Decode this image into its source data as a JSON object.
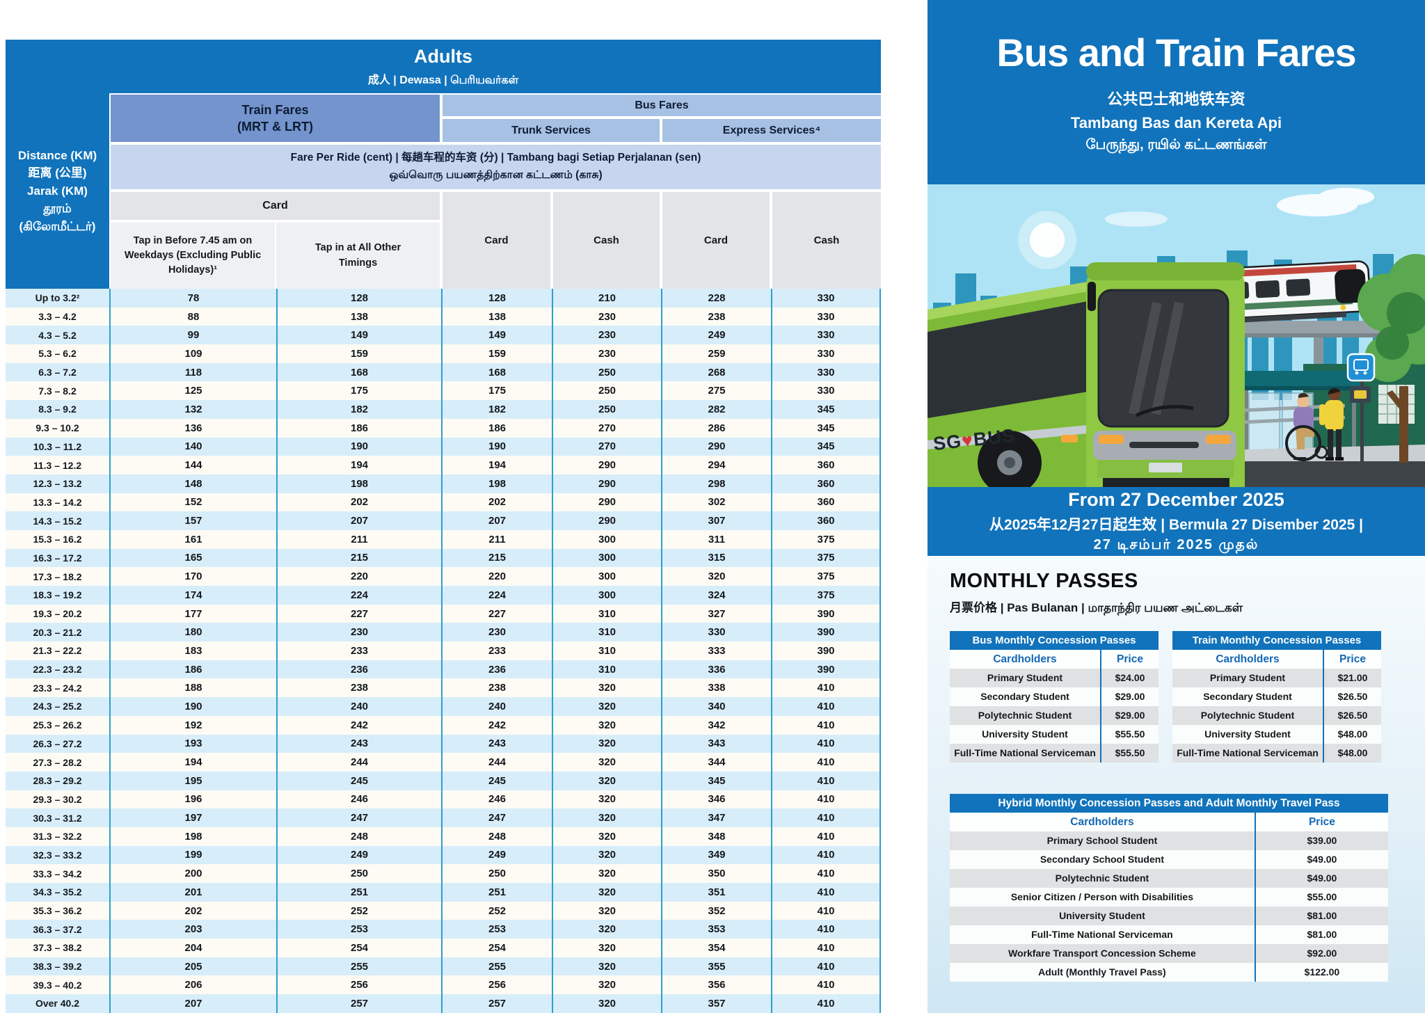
{
  "colors": {
    "primary_blue": "#1173BB",
    "train_header_blue": "#7394CD",
    "bus_header_blue": "#A6C1E4",
    "fare_ride_periwinkle": "#C7D6EE",
    "row_alt_blue": "#D7EDFA",
    "row_cream": "#FDFBF4",
    "column_divider_teal": "#2E9FCB",
    "pass_row_gray": "#E0E1E3",
    "bus_green": "#8DC63F"
  },
  "fare_table": {
    "title": "Adults",
    "subtitle": "成人 | Dewasa | பெரியவர்கள்",
    "distance_header": "Distance (KM)\n距离 (公里)\nJarak (KM)\nதூரம்\n(கிலோமீட்டர்)",
    "group_headers": {
      "train": "Train Fares\n(MRT & LRT)",
      "bus": "Bus Fares",
      "trunk": "Trunk Services",
      "express": "Express Services⁴"
    },
    "fare_per_ride": {
      "line1": "Fare Per Ride (cent) | 每趟车程的车资 (分) | Tambang bagi Setiap Perjalanan (sen)",
      "line2": "ஒவ்வொரு பயணத்திற்கான கட்டணம் (காசு)"
    },
    "card_group_label": "Card",
    "col_headers": [
      "Tap in Before 7.45 am on Weekdays (Excluding Public Holidays)¹",
      "Tap in at All Other Timings",
      "Card",
      "Cash",
      "Card",
      "Cash"
    ],
    "rows": [
      [
        "Up to 3.2²",
        "78",
        "128",
        "128",
        "210",
        "228",
        "330"
      ],
      [
        "3.3 – 4.2",
        "88",
        "138",
        "138",
        "230",
        "238",
        "330"
      ],
      [
        "4.3 – 5.2",
        "99",
        "149",
        "149",
        "230",
        "249",
        "330"
      ],
      [
        "5.3 – 6.2",
        "109",
        "159",
        "159",
        "230",
        "259",
        "330"
      ],
      [
        "6.3 – 7.2",
        "118",
        "168",
        "168",
        "250",
        "268",
        "330"
      ],
      [
        "7.3 – 8.2",
        "125",
        "175",
        "175",
        "250",
        "275",
        "330"
      ],
      [
        "8.3 – 9.2",
        "132",
        "182",
        "182",
        "250",
        "282",
        "345"
      ],
      [
        "9.3 – 10.2",
        "136",
        "186",
        "186",
        "270",
        "286",
        "345"
      ],
      [
        "10.3 – 11.2",
        "140",
        "190",
        "190",
        "270",
        "290",
        "345"
      ],
      [
        "11.3 – 12.2",
        "144",
        "194",
        "194",
        "290",
        "294",
        "360"
      ],
      [
        "12.3 – 13.2",
        "148",
        "198",
        "198",
        "290",
        "298",
        "360"
      ],
      [
        "13.3 – 14.2",
        "152",
        "202",
        "202",
        "290",
        "302",
        "360"
      ],
      [
        "14.3 – 15.2",
        "157",
        "207",
        "207",
        "290",
        "307",
        "360"
      ],
      [
        "15.3 – 16.2",
        "161",
        "211",
        "211",
        "300",
        "311",
        "375"
      ],
      [
        "16.3 – 17.2",
        "165",
        "215",
        "215",
        "300",
        "315",
        "375"
      ],
      [
        "17.3 – 18.2",
        "170",
        "220",
        "220",
        "300",
        "320",
        "375"
      ],
      [
        "18.3 – 19.2",
        "174",
        "224",
        "224",
        "300",
        "324",
        "375"
      ],
      [
        "19.3 – 20.2",
        "177",
        "227",
        "227",
        "310",
        "327",
        "390"
      ],
      [
        "20.3 – 21.2",
        "180",
        "230",
        "230",
        "310",
        "330",
        "390"
      ],
      [
        "21.3 – 22.2",
        "183",
        "233",
        "233",
        "310",
        "333",
        "390"
      ],
      [
        "22.3 – 23.2",
        "186",
        "236",
        "236",
        "310",
        "336",
        "390"
      ],
      [
        "23.3 – 24.2",
        "188",
        "238",
        "238",
        "320",
        "338",
        "410"
      ],
      [
        "24.3 – 25.2",
        "190",
        "240",
        "240",
        "320",
        "340",
        "410"
      ],
      [
        "25.3 – 26.2",
        "192",
        "242",
        "242",
        "320",
        "342",
        "410"
      ],
      [
        "26.3 – 27.2",
        "193",
        "243",
        "243",
        "320",
        "343",
        "410"
      ],
      [
        "27.3 – 28.2",
        "194",
        "244",
        "244",
        "320",
        "344",
        "410"
      ],
      [
        "28.3 – 29.2",
        "195",
        "245",
        "245",
        "320",
        "345",
        "410"
      ],
      [
        "29.3 – 30.2",
        "196",
        "246",
        "246",
        "320",
        "346",
        "410"
      ],
      [
        "30.3 – 31.2",
        "197",
        "247",
        "247",
        "320",
        "347",
        "410"
      ],
      [
        "31.3 – 32.2",
        "198",
        "248",
        "248",
        "320",
        "348",
        "410"
      ],
      [
        "32.3 – 33.2",
        "199",
        "249",
        "249",
        "320",
        "349",
        "410"
      ],
      [
        "33.3 – 34.2",
        "200",
        "250",
        "250",
        "320",
        "350",
        "410"
      ],
      [
        "34.3 – 35.2",
        "201",
        "251",
        "251",
        "320",
        "351",
        "410"
      ],
      [
        "35.3 – 36.2",
        "202",
        "252",
        "252",
        "320",
        "352",
        "410"
      ],
      [
        "36.3 – 37.2",
        "203",
        "253",
        "253",
        "320",
        "353",
        "410"
      ],
      [
        "37.3 – 38.2",
        "204",
        "254",
        "254",
        "320",
        "354",
        "410"
      ],
      [
        "38.3 – 39.2",
        "205",
        "255",
        "255",
        "320",
        "355",
        "410"
      ],
      [
        "39.3 – 40.2",
        "206",
        "256",
        "256",
        "320",
        "356",
        "410"
      ],
      [
        "Over 40.2",
        "207",
        "257",
        "257",
        "320",
        "357",
        "410"
      ]
    ]
  },
  "right_panel": {
    "title": "Bus and Train Fares",
    "subtitle_zh": "公共巴士和地铁车资",
    "subtitle_ms": "Tambang Bas dan Kereta Api",
    "subtitle_ta": "பேருந்து, ரயில் கட்டணங்கள்",
    "illustration": {
      "bus_logo_sg": "SG",
      "bus_logo_heart": "♥",
      "bus_logo_bus": "BUS"
    },
    "effective": {
      "line1": "From 27 December 2025",
      "line2": "从2025年12月27日起生效 | Bermula 27 Disember 2025 |",
      "line3": "27 டிசம்பர் 2025 முதல்"
    },
    "monthly_passes": {
      "heading": "MONTHLY PASSES",
      "subheading": "月票价格 | Pas Bulanan | மாதாந்திர பயண அட்டைகள்",
      "bus_table": {
        "title": "Bus Monthly Concession Passes",
        "col_headers": [
          "Cardholders",
          "Price"
        ],
        "rows": [
          [
            "Primary Student",
            "$24.00"
          ],
          [
            "Secondary Student",
            "$29.00"
          ],
          [
            "Polytechnic Student",
            "$29.00"
          ],
          [
            "University Student",
            "$55.50"
          ],
          [
            "Full-Time National Serviceman",
            "$55.50"
          ]
        ]
      },
      "train_table": {
        "title": "Train Monthly Concession Passes",
        "col_headers": [
          "Cardholders",
          "Price"
        ],
        "rows": [
          [
            "Primary Student",
            "$21.00"
          ],
          [
            "Secondary Student",
            "$26.50"
          ],
          [
            "Polytechnic Student",
            "$26.50"
          ],
          [
            "University Student",
            "$48.00"
          ],
          [
            "Full-Time National Serviceman",
            "$48.00"
          ]
        ]
      },
      "hybrid_table": {
        "title": "Hybrid Monthly Concession Passes and Adult Monthly Travel Pass",
        "col_headers": [
          "Cardholders",
          "Price"
        ],
        "rows": [
          [
            "Primary School Student",
            "$39.00"
          ],
          [
            "Secondary School Student",
            "$49.00"
          ],
          [
            "Polytechnic Student",
            "$49.00"
          ],
          [
            "Senior Citizen / Person with Disabilities",
            "$55.00"
          ],
          [
            "University Student",
            "$81.00"
          ],
          [
            "Full-Time National Serviceman",
            "$81.00"
          ],
          [
            "Workfare Transport Concession Scheme",
            "$92.00"
          ],
          [
            "Adult (Monthly Travel Pass)",
            "$122.00"
          ]
        ]
      }
    }
  }
}
